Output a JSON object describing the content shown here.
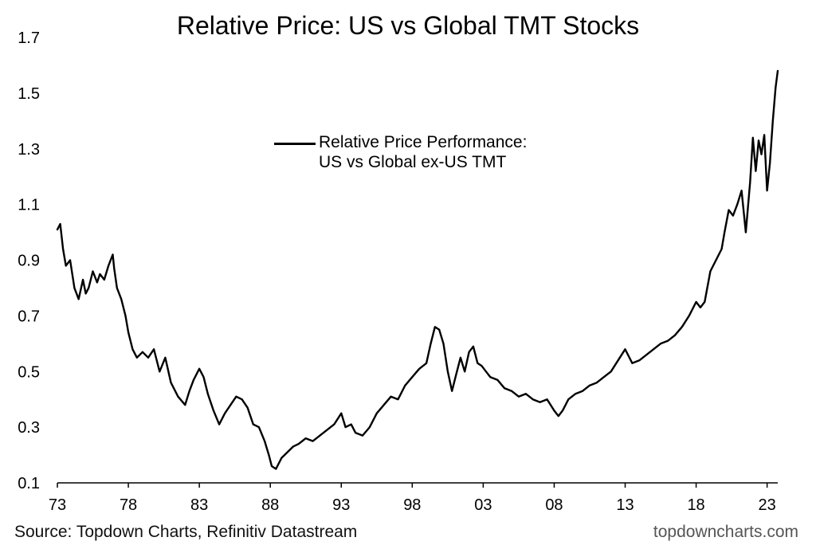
{
  "chart_data": {
    "type": "line",
    "title": "Relative Price: US vs Global TMT Stocks",
    "source": "Source: Topdown Charts, Refinitiv Datastream",
    "brand": "topdowncharts.com",
    "legend": {
      "placement": "center-top",
      "line1": "Relative Price Performance:",
      "line2": "US vs Global ex-US TMT"
    },
    "ylim": [
      0.1,
      1.7
    ],
    "yticks": [
      0.1,
      0.3,
      0.5,
      0.7,
      0.9,
      1.1,
      1.3,
      1.5,
      1.7
    ],
    "ytick_labels": [
      "0.1",
      "0.3",
      "0.5",
      "0.7",
      "0.9",
      "1.1",
      "1.3",
      "1.5",
      "1.7"
    ],
    "xlim": [
      1973,
      2023.75
    ],
    "xticks": [
      1973,
      1978,
      1983,
      1988,
      1993,
      1998,
      2003,
      2008,
      2013,
      2018,
      2023
    ],
    "xtick_labels": [
      "73",
      "78",
      "83",
      "88",
      "93",
      "98",
      "03",
      "08",
      "13",
      "18",
      "23"
    ],
    "grid": false,
    "series": [
      {
        "x": [
          1973.0,
          1973.2,
          1973.4,
          1973.6,
          1973.9,
          1974.2,
          1974.5,
          1974.8,
          1975.0,
          1975.2,
          1975.5,
          1975.8,
          1976.0,
          1976.3,
          1976.6,
          1976.9,
          1977.0,
          1977.2,
          1977.5,
          1977.8,
          1978.0,
          1978.3,
          1978.6,
          1979.0,
          1979.4,
          1979.8,
          1980.2,
          1980.6,
          1981.0,
          1981.5,
          1982.0,
          1982.3,
          1982.6,
          1983.0,
          1983.3,
          1983.6,
          1984.0,
          1984.4,
          1984.8,
          1985.2,
          1985.6,
          1986.0,
          1986.4,
          1986.8,
          1987.2,
          1987.6,
          1987.9,
          1988.1,
          1988.4,
          1988.8,
          1989.2,
          1989.6,
          1990.0,
          1990.5,
          1991.0,
          1991.5,
          1992.0,
          1992.5,
          1993.0,
          1993.3,
          1993.7,
          1994.0,
          1994.5,
          1995.0,
          1995.5,
          1996.0,
          1996.5,
          1997.0,
          1997.5,
          1998.0,
          1998.5,
          1999.0,
          1999.3,
          1999.6,
          1999.9,
          2000.2,
          2000.5,
          2000.8,
          2001.1,
          2001.4,
          2001.7,
          2002.0,
          2002.3,
          2002.6,
          2002.9,
          2003.2,
          2003.5,
          2004.0,
          2004.5,
          2005.0,
          2005.5,
          2006.0,
          2006.5,
          2007.0,
          2007.5,
          2008.0,
          2008.3,
          2008.6,
          2009.0,
          2009.5,
          2010.0,
          2010.5,
          2011.0,
          2011.5,
          2012.0,
          2012.5,
          2013.0,
          2013.5,
          2014.0,
          2014.5,
          2015.0,
          2015.5,
          2016.0,
          2016.5,
          2017.0,
          2017.5,
          2018.0,
          2018.3,
          2018.6,
          2019.0,
          2019.4,
          2019.8,
          2020.0,
          2020.3,
          2020.6,
          2020.9,
          2021.2,
          2021.5,
          2021.8,
          2022.0,
          2022.2,
          2022.4,
          2022.6,
          2022.8,
          2023.0,
          2023.2,
          2023.4,
          2023.6,
          2023.75
        ],
        "values": [
          1.01,
          1.03,
          0.94,
          0.88,
          0.9,
          0.8,
          0.76,
          0.83,
          0.78,
          0.8,
          0.86,
          0.82,
          0.85,
          0.83,
          0.88,
          0.92,
          0.87,
          0.8,
          0.76,
          0.7,
          0.64,
          0.58,
          0.55,
          0.57,
          0.55,
          0.58,
          0.5,
          0.55,
          0.46,
          0.41,
          0.38,
          0.43,
          0.47,
          0.51,
          0.48,
          0.42,
          0.36,
          0.31,
          0.35,
          0.38,
          0.41,
          0.4,
          0.37,
          0.31,
          0.3,
          0.25,
          0.2,
          0.16,
          0.15,
          0.19,
          0.21,
          0.23,
          0.24,
          0.26,
          0.25,
          0.27,
          0.29,
          0.31,
          0.35,
          0.3,
          0.31,
          0.28,
          0.27,
          0.3,
          0.35,
          0.38,
          0.41,
          0.4,
          0.45,
          0.48,
          0.51,
          0.53,
          0.6,
          0.66,
          0.65,
          0.6,
          0.5,
          0.43,
          0.49,
          0.55,
          0.5,
          0.57,
          0.59,
          0.53,
          0.52,
          0.5,
          0.48,
          0.47,
          0.44,
          0.43,
          0.41,
          0.42,
          0.4,
          0.39,
          0.4,
          0.36,
          0.34,
          0.36,
          0.4,
          0.42,
          0.43,
          0.45,
          0.46,
          0.48,
          0.5,
          0.54,
          0.58,
          0.53,
          0.54,
          0.56,
          0.58,
          0.6,
          0.61,
          0.63,
          0.66,
          0.7,
          0.75,
          0.73,
          0.75,
          0.86,
          0.9,
          0.94,
          1.0,
          1.08,
          1.06,
          1.1,
          1.15,
          1.0,
          1.18,
          1.34,
          1.22,
          1.33,
          1.28,
          1.35,
          1.15,
          1.25,
          1.4,
          1.52,
          1.58
        ]
      }
    ]
  }
}
